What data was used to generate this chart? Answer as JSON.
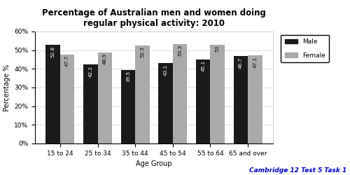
{
  "title": "Percentage of Australian men and women doing\nregular physical activity: 2010",
  "categories": [
    "15 to 24",
    "25 to 34",
    "35 to 44",
    "45 to 54",
    "55 to 64",
    "65 and over"
  ],
  "male_values": [
    52.8,
    42.2,
    39.5,
    43.1,
    45.1,
    46.7
  ],
  "female_values": [
    47.7,
    48.9,
    52.5,
    53.3,
    53,
    47.1
  ],
  "male_color": "#1a1a1a",
  "female_color": "#aaaaaa",
  "xlabel": "Age Group",
  "ylabel": "Percentage %",
  "ylim": [
    0,
    60
  ],
  "yticks": [
    0,
    10,
    20,
    30,
    40,
    50,
    60
  ],
  "ytick_labels": [
    "0%",
    "10%",
    "20%",
    "30%",
    "40%",
    "50%",
    "60%"
  ],
  "bar_width": 0.38,
  "legend_labels": [
    "Male",
    "Female"
  ],
  "footnote": "Cambridge 12 Test 5 Task 1",
  "footnote_color": "#0000cc",
  "title_fontsize": 8.5,
  "label_fontsize": 7,
  "tick_fontsize": 6.5,
  "bar_label_fontsize": 5.2
}
